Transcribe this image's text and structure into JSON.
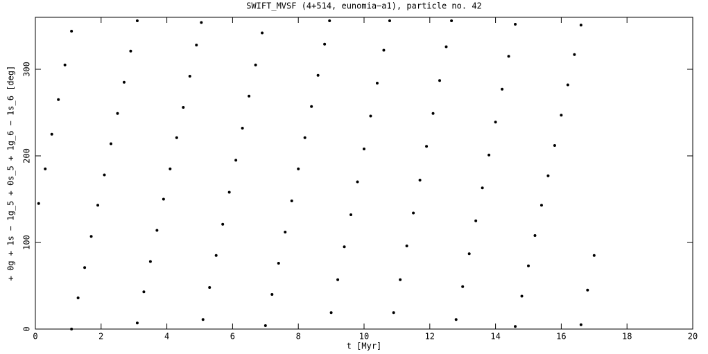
{
  "chart_data": {
    "type": "scatter",
    "title": "SWIFT_MVSF (4+514, eunomia−a1), particle no. 42",
    "x_label": "t [Myr]",
    "y_label": "+ 0g + 1s − 1g_5 + 0s_5 + 1g_6 − 1s_6 [deg]",
    "x": [
      0.1,
      0.3,
      0.5,
      0.7,
      0.9,
      1.1,
      1.1,
      1.3,
      1.5,
      1.7,
      1.9,
      2.1,
      2.3,
      2.5,
      2.7,
      2.9,
      3.1,
      3.1,
      3.3,
      3.5,
      3.7,
      3.9,
      4.1,
      4.3,
      4.5,
      4.7,
      4.9,
      5.05,
      5.1,
      5.3,
      5.5,
      5.7,
      5.9,
      6.1,
      6.3,
      6.5,
      6.7,
      6.9,
      7.0,
      7.2,
      7.4,
      7.6,
      7.8,
      8.0,
      8.2,
      8.4,
      8.6,
      8.8,
      8.95,
      9.0,
      9.2,
      9.4,
      9.6,
      9.8,
      10.0,
      10.2,
      10.4,
      10.6,
      10.78,
      10.9,
      11.1,
      11.3,
      11.5,
      11.7,
      11.9,
      12.1,
      12.3,
      12.5,
      12.66,
      12.8,
      13.0,
      13.2,
      13.4,
      13.6,
      13.8,
      14.0,
      14.2,
      14.4,
      14.6,
      14.6,
      14.8,
      15.0,
      15.2,
      15.4,
      15.6,
      15.8,
      16.0,
      16.2,
      16.4,
      16.6,
      16.6,
      16.8,
      17.0
    ],
    "values": [
      145,
      185,
      225,
      265,
      305,
      344,
      0,
      36,
      71,
      107,
      143,
      178,
      214,
      249,
      285,
      321,
      356,
      7,
      43,
      78,
      114,
      150,
      185,
      221,
      256,
      292,
      328,
      354,
      11,
      48,
      85,
      121,
      158,
      195,
      232,
      269,
      305,
      342,
      4,
      40,
      76,
      112,
      148,
      185,
      221,
      257,
      293,
      329,
      356,
      19,
      57,
      95,
      132,
      170,
      208,
      246,
      284,
      322,
      356,
      19,
      57,
      96,
      134,
      172,
      211,
      249,
      287,
      326,
      356,
      11,
      49,
      87,
      125,
      163,
      201,
      239,
      277,
      315,
      352,
      3,
      38,
      73,
      108,
      143,
      177,
      212,
      247,
      282,
      317,
      351,
      5,
      45,
      85
    ],
    "color": "#000000",
    "xlim": [
      0,
      20
    ],
    "xticks": [
      0,
      2,
      4,
      6,
      8,
      10,
      12,
      14,
      16,
      18,
      20
    ],
    "ylim": [
      0,
      360
    ],
    "yticks": [
      0,
      100,
      200,
      300
    ]
  }
}
